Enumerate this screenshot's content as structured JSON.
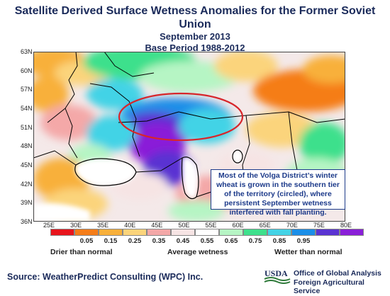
{
  "title": {
    "main": "Satellite Derived Surface Wetness Anomalies for the Former Soviet Union",
    "month": "September 2013",
    "base_period": "Base Period 1988-2012"
  },
  "map": {
    "lat_labels": [
      "63N",
      "60N",
      "57N",
      "54N",
      "51N",
      "48N",
      "45N",
      "42N",
      "39N",
      "36N"
    ],
    "lon_labels": [
      "25E",
      "30E",
      "35E",
      "40E",
      "45E",
      "50E",
      "55E",
      "60E",
      "65E",
      "70E",
      "75E",
      "80E"
    ],
    "highlight_ring_color": "#d7262b",
    "land_color": "#f4e9e9",
    "sea_color": "#ffffff"
  },
  "callout": {
    "text": "Most of the Volga District’s winter wheat is grown in the southern tier of the territory (circled), where persistent September wetness interfered with fall planting."
  },
  "colorbar": {
    "colors": [
      "#e8141c",
      "#f57d19",
      "#f8b03a",
      "#fbd47b",
      "#f4a8a8",
      "#f6e4e4",
      "#ffffff",
      "#b6f5c4",
      "#3ee08c",
      "#43d3e6",
      "#1a8ee8",
      "#5a33d2",
      "#8a1fd8"
    ],
    "ticks": [
      "0.05",
      "0.15",
      "0.25",
      "0.35",
      "0.45",
      "0.55",
      "0.65",
      "0.75",
      "0.85",
      "0.95"
    ],
    "label_dry": "Drier than normal",
    "label_mid": "Average wetness",
    "label_wet": "Wetter than normal"
  },
  "footer": {
    "source": "Source: WeatherPredict Consulting (WPC) Inc.",
    "usda": "USDA",
    "agency_line1": "Office of Global Analysis",
    "agency_line2": "Foreign Agricultural Service"
  }
}
